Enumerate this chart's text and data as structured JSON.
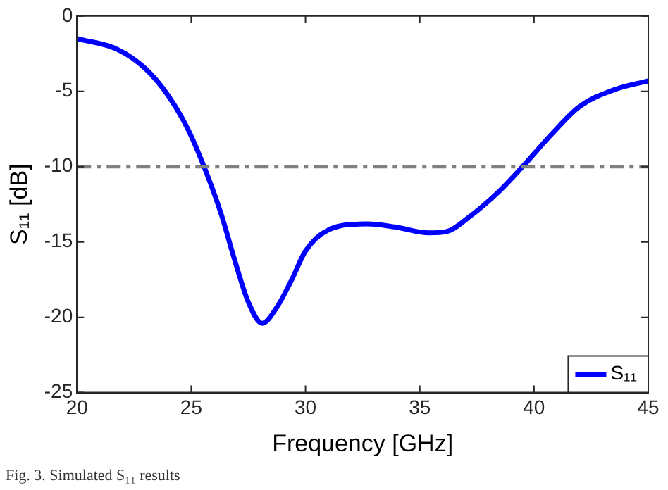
{
  "chart_data": {
    "type": "line",
    "xlabel": "Frequency [GHz]",
    "ylabel": "S₁₁ [dB]",
    "xlim": [
      20,
      45
    ],
    "xticks": [
      20,
      25,
      30,
      35,
      40,
      45
    ],
    "ylim": [
      -25,
      0
    ],
    "yticks": [
      -25,
      -20,
      -15,
      -10,
      -5,
      0
    ],
    "series": [
      {
        "name": "S₁₁",
        "color": "#0000ff",
        "x": [
          20,
          21.75,
          23,
          24,
          24.85,
          25.56,
          26.3,
          26.9,
          27.5,
          28.1,
          28.76,
          29.4,
          30,
          31,
          32.7,
          33.9,
          35.4,
          36.2,
          37.2,
          38.5,
          39.5,
          40.8,
          42,
          43.5,
          45
        ],
        "values": [
          -1.5,
          -2.2,
          -3.5,
          -5.3,
          -7.5,
          -10,
          -13.1,
          -16.2,
          -19,
          -20.4,
          -19.3,
          -17.5,
          -15.6,
          -14.2,
          -13.8,
          -14,
          -14.4,
          -14.3,
          -13.3,
          -11.6,
          -10,
          -7.8,
          -6,
          -4.9,
          -4.3
        ]
      }
    ],
    "ref_lines": [
      {
        "axis": "y",
        "value": -10,
        "color": "#808080",
        "line_style": "dashdot"
      }
    ],
    "legend": "bottom right",
    "grid": false,
    "marker": "none",
    "line_style": "solid",
    "annotations": [
      "Fig. 3. Simulated S₁₁ results"
    ]
  }
}
